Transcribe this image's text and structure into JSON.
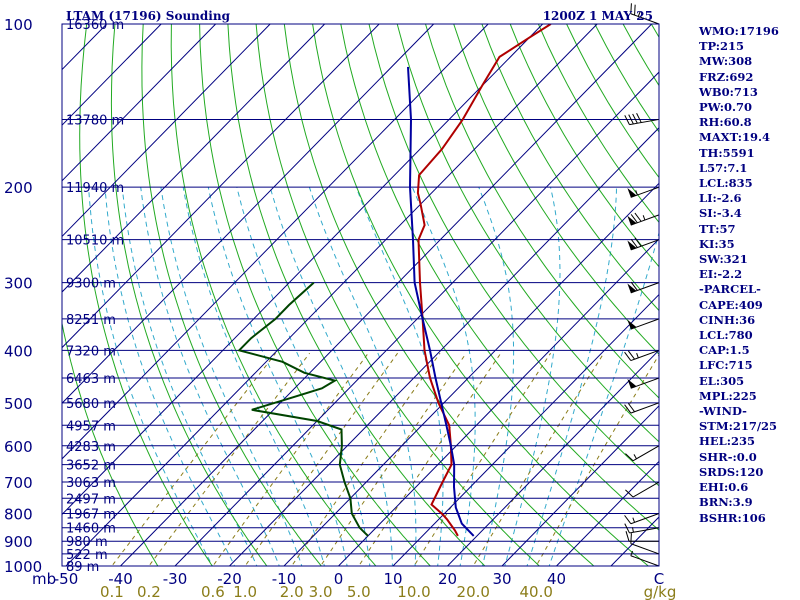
{
  "header": {
    "station": "LTAM (17196) Sounding",
    "time": "1200Z  1 MAY 25"
  },
  "params": [
    "WMO:17196",
    "TP:215",
    "MW:308",
    "FRZ:692",
    "WB0:713",
    "PW:0.70",
    "RH:60.8",
    "MAXT:19.4",
    "TH:5591",
    "L57:7.1",
    "LCL:835",
    "LI:-2.6",
    "SI:-3.4",
    "TT:57",
    "KI:35",
    "SW:321",
    "EI:-2.2",
    "-PARCEL-",
    "CAPE:409",
    "CINH:36",
    "LCL:780",
    "CAP:1.5",
    "LFC:715",
    "EL:305",
    "MPL:225",
    "-WIND-",
    "STM:217/25",
    "HEL:235",
    "SHR-:0.0",
    "SRDS:120",
    "EHI:0.6",
    "BRN:3.9",
    "BSHR:106"
  ],
  "chart_data": {
    "type": "line",
    "title": "LTAM (17196) Sounding",
    "subtitle": "1200Z  1 MAY 25",
    "xlabel": "",
    "ylabel": "",
    "x_unit_label": "C",
    "y_unit_label": "mb",
    "xlim": [
      -50,
      50
    ],
    "y_scale": "log",
    "ylim": [
      1000,
      100
    ],
    "grid": true,
    "pressure_ticks": [
      "100",
      "200",
      "300",
      "400",
      "500",
      "600",
      "700",
      "800",
      "900",
      "1000"
    ],
    "temperature_ticks": [
      "-50",
      "-40",
      "-30",
      "-20",
      "-10",
      "0",
      "10",
      "20",
      "30",
      "40"
    ],
    "mixing_ratio_ticks": [
      "0.1",
      "0.2",
      "0.6",
      "1.0",
      "2.0",
      "3.0",
      "5.0",
      "10.0",
      "20.0",
      "40.0"
    ],
    "mixing_ratio_unit": "g/kg",
    "height_labels": [
      {
        "p": 100,
        "label": "16360 m"
      },
      {
        "p": 150,
        "label": "13780 m"
      },
      {
        "p": 200,
        "label": "11940 m"
      },
      {
        "p": 250,
        "label": "10510 m"
      },
      {
        "p": 300,
        "label": "9300 m"
      },
      {
        "p": 350,
        "label": "8251 m"
      },
      {
        "p": 400,
        "label": "7320 m"
      },
      {
        "p": 450,
        "label": "6463 m"
      },
      {
        "p": 500,
        "label": "5680 m"
      },
      {
        "p": 550,
        "label": "4957 m"
      },
      {
        "p": 600,
        "label": "4283 m"
      },
      {
        "p": 650,
        "label": "3652 m"
      },
      {
        "p": 700,
        "label": "3063 m"
      },
      {
        "p": 750,
        "label": "2497 m"
      },
      {
        "p": 800,
        "label": "1967 m"
      },
      {
        "p": 850,
        "label": "1460 m"
      },
      {
        "p": 900,
        "label": "980 m"
      },
      {
        "p": 950,
        "label": "522 m"
      },
      {
        "p": 1000,
        "label": "89 m"
      }
    ],
    "series": [
      {
        "key": "temperature",
        "color": "#b00000",
        "p_t": [
          [
            880,
            16.5
          ],
          [
            860,
            15
          ],
          [
            820,
            11.5
          ],
          [
            800,
            9.5
          ],
          [
            770,
            6
          ],
          [
            700,
            4
          ],
          [
            650,
            2.5
          ],
          [
            600,
            -1
          ],
          [
            550,
            -5
          ],
          [
            500,
            -11
          ],
          [
            450,
            -17
          ],
          [
            400,
            -23
          ],
          [
            350,
            -29
          ],
          [
            300,
            -36
          ],
          [
            250,
            -44
          ],
          [
            235,
            -45.5
          ],
          [
            215,
            -50
          ],
          [
            205,
            -52.5
          ],
          [
            190,
            -55.5
          ],
          [
            170,
            -56
          ],
          [
            150,
            -57.5
          ],
          [
            130,
            -60
          ],
          [
            115,
            -62
          ],
          [
            106,
            -60
          ],
          [
            100,
            -58.5
          ]
        ]
      },
      {
        "key": "dewpoint",
        "color": "#004400",
        "p_t": [
          [
            880,
            0
          ],
          [
            870,
            -1
          ],
          [
            850,
            -3
          ],
          [
            800,
            -7
          ],
          [
            750,
            -10
          ],
          [
            700,
            -14
          ],
          [
            650,
            -18
          ],
          [
            600,
            -21
          ],
          [
            560,
            -24
          ],
          [
            540,
            -30
          ],
          [
            515,
            -44
          ],
          [
            490,
            -39
          ],
          [
            470,
            -35
          ],
          [
            455,
            -34
          ],
          [
            440,
            -41
          ],
          [
            420,
            -47
          ],
          [
            400,
            -57
          ],
          [
            380,
            -57
          ],
          [
            350,
            -56
          ],
          [
            330,
            -56
          ],
          [
            300,
            -55.5
          ]
        ]
      },
      {
        "key": "parcel",
        "color": "#0000a0",
        "p_t": [
          [
            880,
            19.4
          ],
          [
            835,
            15
          ],
          [
            780,
            11
          ],
          [
            715,
            7
          ],
          [
            650,
            3
          ],
          [
            600,
            -1
          ],
          [
            550,
            -5.5
          ],
          [
            500,
            -10.5
          ],
          [
            450,
            -16
          ],
          [
            400,
            -22
          ],
          [
            350,
            -29
          ],
          [
            300,
            -37
          ],
          [
            250,
            -45
          ],
          [
            200,
            -55
          ],
          [
            150,
            -67
          ],
          [
            120,
            -77
          ]
        ]
      }
    ],
    "wind_barbs": [
      {
        "p": 1000,
        "dir": 290,
        "spd": 5
      },
      {
        "p": 950,
        "dir": 290,
        "spd": 10
      },
      {
        "p": 900,
        "dir": 270,
        "spd": 10
      },
      {
        "p": 850,
        "dir": 260,
        "spd": 15
      },
      {
        "p": 800,
        "dir": 250,
        "spd": 15
      },
      {
        "p": 700,
        "dir": 240,
        "spd": 10
      },
      {
        "p": 600,
        "dir": 240,
        "spd": 15
      },
      {
        "p": 500,
        "dir": 250,
        "spd": 20
      },
      {
        "p": 450,
        "dir": 250,
        "spd": 50
      },
      {
        "p": 400,
        "dir": 250,
        "spd": 25
      },
      {
        "p": 350,
        "dir": 250,
        "spd": 50
      },
      {
        "p": 300,
        "dir": 250,
        "spd": 60
      },
      {
        "p": 250,
        "dir": 250,
        "spd": 70
      },
      {
        "p": 225,
        "dir": 250,
        "spd": 75
      },
      {
        "p": 200,
        "dir": 250,
        "spd": 55
      },
      {
        "p": 150,
        "dir": 260,
        "spd": 40
      },
      {
        "p": 100,
        "dir": 290,
        "spd": 25
      }
    ]
  }
}
